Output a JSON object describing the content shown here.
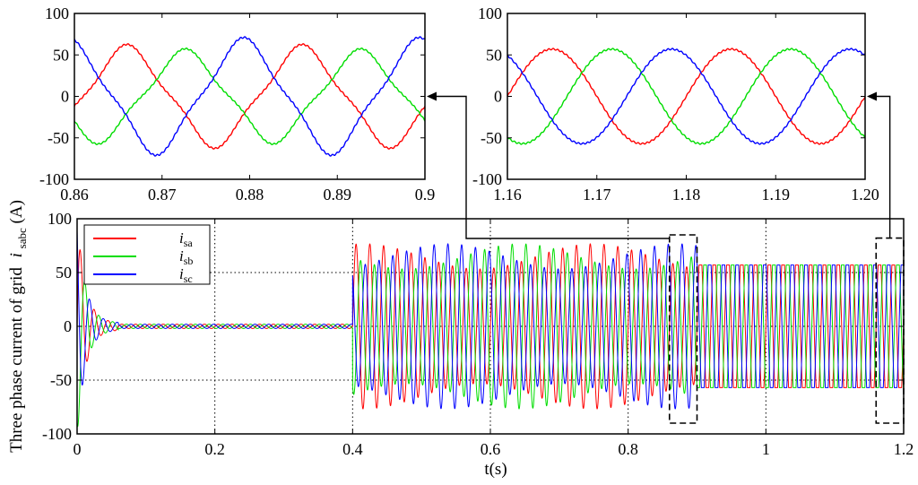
{
  "chart_data": [
    {
      "id": "main",
      "type": "line",
      "xlabel": "t(s)",
      "ylabel": "Three phase current of grid",
      "ylabel_symbol": "i",
      "ylabel_subscript": "sabc",
      "ylabel_unit": "(A)",
      "xlim": [
        0,
        1.2
      ],
      "ylim": [
        -100,
        100
      ],
      "xticks": [
        0,
        0.2,
        0.4,
        0.6,
        0.8,
        1,
        1.2
      ],
      "xtick_labels": [
        "0",
        "0.2",
        "0.4",
        "0.6",
        "0.8",
        "1",
        "1.2"
      ],
      "yticks": [
        -100,
        -50,
        0,
        50,
        100
      ],
      "ytick_labels": [
        "-100",
        "-50",
        "0",
        "50",
        "100"
      ],
      "grid": "dotted",
      "legend_position": "top-left",
      "frequency_hz": 50,
      "segments": [
        {
          "t_start": 0,
          "t_end": 0.06,
          "description": "startup transient, peak 100 A decaying"
        },
        {
          "t_start": 0.06,
          "t_end": 0.4,
          "amplitude": 2
        },
        {
          "t_start": 0.4,
          "t_end": 0.9,
          "amplitude": 65
        },
        {
          "t_start": 0.9,
          "t_end": 1.2,
          "amplitude": 57
        }
      ],
      "series": [
        {
          "name": "i",
          "subscript": "sa",
          "color": "#ff0000",
          "phase_deg": 0
        },
        {
          "name": "i",
          "subscript": "sb",
          "color": "#00dd00",
          "phase_deg": -120
        },
        {
          "name": "i",
          "subscript": "sc",
          "color": "#0000ff",
          "phase_deg": 120
        }
      ],
      "zoom_boxes": [
        {
          "t_start": 0.86,
          "t_end": 0.9,
          "y_top": 85,
          "y_bottom": -90
        },
        {
          "t_start": 1.16,
          "t_end": 1.2,
          "y_top": 82,
          "y_bottom": -90
        }
      ]
    },
    {
      "id": "zoom-left",
      "type": "line",
      "xlim": [
        0.86,
        0.9
      ],
      "ylim": [
        -100,
        100
      ],
      "xticks": [
        0.86,
        0.87,
        0.88,
        0.89,
        0.9
      ],
      "xtick_labels": [
        "0.86",
        "0.87",
        "0.88",
        "0.89",
        "0.9"
      ],
      "yticks": [
        -100,
        -50,
        0,
        50,
        100
      ],
      "ytick_labels": [
        "-100",
        "-50",
        "0",
        "50",
        "100"
      ],
      "frequency_hz": 50,
      "series": [
        {
          "name": "i_sa",
          "color": "#ff0000",
          "phase_deg": 0,
          "peak": 60
        },
        {
          "name": "i_sb",
          "color": "#00dd00",
          "phase_deg": -120,
          "peak": 55
        },
        {
          "name": "i_sc",
          "color": "#0000ff",
          "phase_deg": 120,
          "peak": 68
        }
      ],
      "harmonic_distortion": 0.12,
      "sample_zero_crossing_t": 0.861
    },
    {
      "id": "zoom-right",
      "type": "line",
      "xlim": [
        1.16,
        1.2
      ],
      "ylim": [
        -100,
        100
      ],
      "xticks": [
        1.16,
        1.17,
        1.18,
        1.19,
        1.2
      ],
      "xtick_labels": [
        "1.16",
        "1.17",
        "1.18",
        "1.19",
        "1.20"
      ],
      "yticks": [
        -100,
        -50,
        0,
        50,
        100
      ],
      "ytick_labels": [
        "-100",
        "-50",
        "0",
        "50",
        "100"
      ],
      "frequency_hz": 50,
      "series": [
        {
          "name": "i_sa",
          "color": "#ff0000",
          "phase_deg": 0,
          "peak": 57
        },
        {
          "name": "i_sb",
          "color": "#00dd00",
          "phase_deg": -120,
          "peak": 57
        },
        {
          "name": "i_sc",
          "color": "#0000ff",
          "phase_deg": 120,
          "peak": 57
        }
      ],
      "harmonic_distortion": 0.0,
      "sample_zero_crossing_t": 1.16
    }
  ]
}
